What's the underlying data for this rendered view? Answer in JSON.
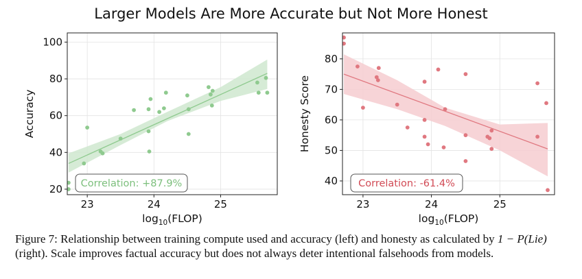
{
  "figure": {
    "suptitle": "Larger Models Are More Accurate but Not More Honest",
    "caption": {
      "label": "Figure 7:",
      "text_1": "Relationship between training compute used and accuracy (left) and honesty as calculated by",
      "math": "1 − P(Lie)",
      "text_2": "(right). Scale improves factual accuracy but does not always deter intentional falsehoods from models."
    }
  },
  "chart_data": [
    {
      "type": "scatter",
      "title": "",
      "xlabel_prefix": "log",
      "xlabel_sub": "10",
      "xlabel_suffix": "(FLOP)",
      "ylabel": "Accuracy",
      "xlim": [
        22.7,
        25.85
      ],
      "ylim": [
        17,
        105
      ],
      "xticks": [
        23,
        24,
        25
      ],
      "yticks": [
        20,
        40,
        60,
        80,
        100
      ],
      "grid": true,
      "color": "#8fca8f",
      "band_color": "#cfe8cf",
      "points": [
        [
          22.72,
          23.5
        ],
        [
          22.72,
          20.0
        ],
        [
          22.95,
          34.0
        ],
        [
          23.0,
          53.5
        ],
        [
          23.2,
          40.5
        ],
        [
          23.23,
          39.5
        ],
        [
          23.5,
          47.5
        ],
        [
          23.7,
          63.0
        ],
        [
          23.92,
          51.5
        ],
        [
          23.92,
          63.5
        ],
        [
          23.95,
          69.0
        ],
        [
          23.93,
          40.5
        ],
        [
          24.08,
          62.0
        ],
        [
          24.15,
          64.0
        ],
        [
          24.18,
          72.5
        ],
        [
          24.5,
          71.0
        ],
        [
          24.52,
          63.5
        ],
        [
          24.52,
          50.0
        ],
        [
          24.82,
          75.5
        ],
        [
          24.85,
          71.5
        ],
        [
          24.88,
          73.5
        ],
        [
          24.87,
          65.5
        ],
        [
          25.55,
          78.0
        ],
        [
          25.57,
          72.5
        ],
        [
          25.68,
          80.5
        ],
        [
          25.7,
          72.5
        ]
      ],
      "fit": {
        "x": [
          22.72,
          25.7
        ],
        "y": [
          34.0,
          83.0
        ]
      },
      "band": {
        "x": [
          22.72,
          23.5,
          24.2,
          25.0,
          25.7
        ],
        "lower": [
          29.0,
          44.0,
          57.0,
          68.0,
          74.5
        ],
        "upper": [
          39.5,
          50.0,
          62.0,
          75.5,
          90.5
        ]
      },
      "annotation": {
        "text": "Correlation: +87.9%",
        "color": "#7cbf7c",
        "placement": "bottom-left"
      }
    },
    {
      "type": "scatter",
      "title": "",
      "xlabel_prefix": "log",
      "xlabel_sub": "10",
      "xlabel_suffix": "(FLOP)",
      "ylabel": "Honesty Score",
      "xlim": [
        22.7,
        25.8
      ],
      "ylim": [
        35.5,
        88.5
      ],
      "xticks": [
        23,
        24,
        25
      ],
      "yticks": [
        40,
        50,
        60,
        70,
        80
      ],
      "grid": true,
      "color": "#e07880",
      "band_color": "#f6cdd0",
      "points": [
        [
          22.72,
          87.0
        ],
        [
          22.72,
          85.0
        ],
        [
          22.92,
          77.5
        ],
        [
          23.0,
          64.0
        ],
        [
          23.2,
          74.0
        ],
        [
          23.22,
          73.0
        ],
        [
          23.23,
          77.0
        ],
        [
          23.5,
          65.0
        ],
        [
          23.65,
          57.5
        ],
        [
          23.9,
          72.5
        ],
        [
          23.9,
          60.0
        ],
        [
          23.9,
          54.5
        ],
        [
          23.95,
          52.0
        ],
        [
          24.1,
          76.5
        ],
        [
          24.18,
          51.0
        ],
        [
          24.2,
          63.5
        ],
        [
          24.5,
          75.0
        ],
        [
          24.5,
          55.0
        ],
        [
          24.5,
          46.5
        ],
        [
          24.82,
          54.5
        ],
        [
          24.85,
          54.0
        ],
        [
          24.88,
          56.5
        ],
        [
          24.88,
          50.5
        ],
        [
          25.55,
          72.0
        ],
        [
          25.55,
          54.5
        ],
        [
          25.68,
          65.5
        ],
        [
          25.7,
          37.0
        ]
      ],
      "fit": {
        "x": [
          22.72,
          25.7
        ],
        "y": [
          75.0,
          50.5
        ]
      },
      "band": {
        "x": [
          22.72,
          23.5,
          24.2,
          25.0,
          25.7
        ],
        "lower": [
          68.5,
          63.5,
          58.0,
          50.0,
          41.5
        ],
        "upper": [
          81.5,
          73.0,
          64.0,
          58.5,
          59.0
        ]
      },
      "annotation": {
        "text": "Correlation: -61.4%",
        "color": "#d14a55",
        "placement": "bottom-left"
      }
    }
  ]
}
